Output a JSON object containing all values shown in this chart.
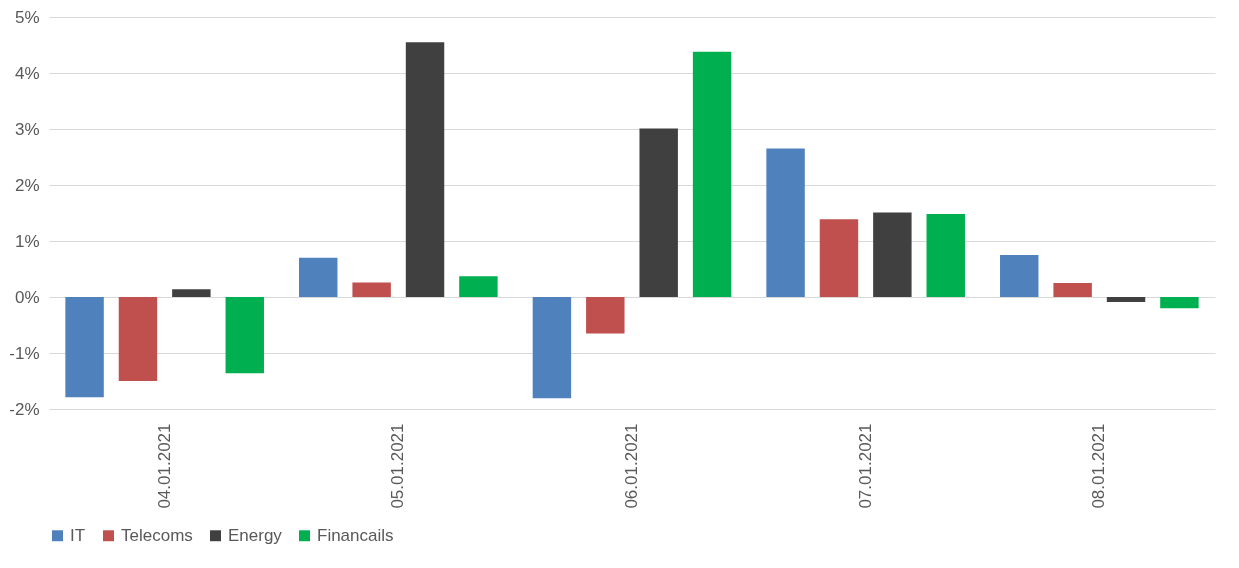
{
  "chart_data": {
    "type": "bar",
    "categories": [
      "04.01.2021",
      "05.01.2021",
      "06.01.2021",
      "07.01.2021",
      "08.01.2021"
    ],
    "series": [
      {
        "name": "IT",
        "color": "#4f81bd",
        "values": [
          -1.79,
          0.7,
          -1.81,
          2.65,
          0.75
        ]
      },
      {
        "name": "Telecoms",
        "color": "#c0504d",
        "values": [
          -1.5,
          0.26,
          -0.65,
          1.39,
          0.25
        ]
      },
      {
        "name": "Energy",
        "color": "#404040",
        "values": [
          0.14,
          4.55,
          3.01,
          1.51,
          -0.09
        ]
      },
      {
        "name": "Financails",
        "color": "#00b050",
        "values": [
          -1.36,
          0.37,
          4.38,
          1.48,
          -0.2
        ]
      }
    ],
    "ylim": [
      -2,
      5
    ],
    "yticks": [
      {
        "value": -2,
        "label": "-2%"
      },
      {
        "value": -1,
        "label": "-1%"
      },
      {
        "value": 0,
        "label": "0%"
      },
      {
        "value": 1,
        "label": "1%"
      },
      {
        "value": 2,
        "label": "2%"
      },
      {
        "value": 3,
        "label": "3%"
      },
      {
        "value": 4,
        "label": "4%"
      },
      {
        "value": 5,
        "label": "5%"
      }
    ],
    "grid": "y",
    "legend": "bottom"
  }
}
